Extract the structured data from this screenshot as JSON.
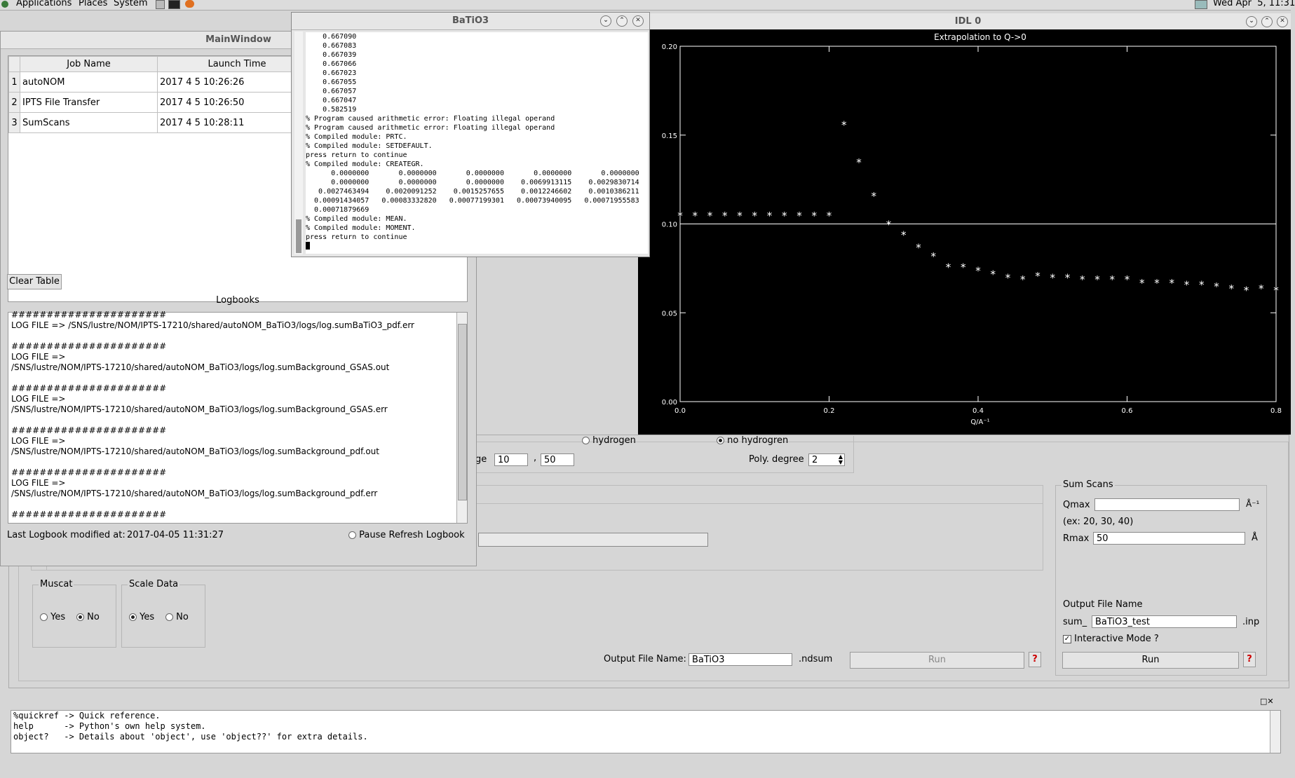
{
  "top_panel": {
    "menus": [
      "Applications",
      "Places",
      "System"
    ],
    "clock": "Wed Apr  5, 11:31"
  },
  "main_window": {
    "title": "MainWindow",
    "job_table": {
      "headers": [
        "Job Name",
        "Launch Time"
      ],
      "rows": [
        {
          "index": "1",
          "name": "autoNOM",
          "time": "2017 4 5 10:26:26"
        },
        {
          "index": "2",
          "name": "IPTS File Transfer",
          "time": "2017 4 5 10:26:50"
        },
        {
          "index": "3",
          "name": "SumScans",
          "time": "2017 4 5 10:28:11"
        }
      ]
    },
    "clear_table_label": "Clear Table",
    "logbooks_title": "Logbooks",
    "log_lines": [
      "######################",
      "LOG FILE => /SNS/lustre/NOM/IPTS-17210/shared/autoNOM_BaTiO3/logs/log.sumBaTiO3_pdf.err",
      "",
      "######################",
      "LOG FILE =>",
      "/SNS/lustre/NOM/IPTS-17210/shared/autoNOM_BaTiO3/logs/log.sumBackground_GSAS.out",
      "",
      "######################",
      "LOG FILE =>",
      "/SNS/lustre/NOM/IPTS-17210/shared/autoNOM_BaTiO3/logs/log.sumBackground_GSAS.err",
      "",
      "######################",
      "LOG FILE =>",
      "/SNS/lustre/NOM/IPTS-17210/shared/autoNOM_BaTiO3/logs/log.sumBackground_pdf.out",
      "",
      "######################",
      "LOG FILE =>",
      "/SNS/lustre/NOM/IPTS-17210/shared/autoNOM_BaTiO3/logs/log.sumBackground_pdf.err",
      "",
      "######################"
    ],
    "last_modified_label": "Last Logbook modified at:",
    "last_modified_value": "2017-04-05 11:31:27",
    "pause_refresh_label": "Pause Refresh Logbook"
  },
  "terminal": {
    "title": "BaTiO3",
    "lines": [
      "    0.667090",
      "    0.667083",
      "    0.667039",
      "    0.667066",
      "    0.667023",
      "    0.667055",
      "    0.667057",
      "    0.667047",
      "    0.582519",
      "% Program caused arithmetic error: Floating illegal operand",
      "% Program caused arithmetic error: Floating illegal operand",
      "% Compiled module: PRTC.",
      "% Compiled module: SETDEFAULT.",
      "press return to continue",
      "% Compiled module: CREATEGR.",
      "      0.0000000       0.0000000       0.0000000       0.0000000       0.0000000",
      "      0.0000000       0.0000000       0.0000000    0.0069913115    0.0029830714",
      "   0.0027463494    0.0020091252    0.0015257655    0.0012246602    0.0010386211",
      "  0.00091434057   0.00083332820   0.00077199301   0.00073940095   0.00071955583",
      "  0.00071879669",
      "% Compiled module: MEAN.",
      "% Compiled module: MOMENT.",
      "press return to continue"
    ]
  },
  "idl_window": {
    "title": "IDL 0"
  },
  "chart_data": {
    "type": "scatter",
    "title": "Extrapolation to Q->0",
    "xlabel": "Q/A⁻¹",
    "ylabel": "",
    "xlim": [
      0.0,
      0.8
    ],
    "ylim": [
      0.0,
      0.2
    ],
    "x_ticks": [
      "0.0",
      "0.2",
      "0.4",
      "0.6",
      "0.8"
    ],
    "y_ticks": [
      "0.00",
      "0.05",
      "0.10",
      "0.15",
      "0.20"
    ],
    "reference_line_y": 0.1,
    "series": [
      {
        "points": [
          [
            0.0,
            0.105
          ],
          [
            0.02,
            0.105
          ],
          [
            0.04,
            0.105
          ],
          [
            0.06,
            0.105
          ],
          [
            0.08,
            0.105
          ],
          [
            0.1,
            0.105
          ],
          [
            0.12,
            0.105
          ],
          [
            0.14,
            0.105
          ],
          [
            0.16,
            0.105
          ],
          [
            0.18,
            0.105
          ],
          [
            0.2,
            0.105
          ],
          [
            0.22,
            0.156
          ],
          [
            0.24,
            0.135
          ],
          [
            0.26,
            0.116
          ],
          [
            0.28,
            0.1
          ],
          [
            0.3,
            0.094
          ],
          [
            0.32,
            0.087
          ],
          [
            0.34,
            0.082
          ],
          [
            0.36,
            0.076
          ],
          [
            0.38,
            0.076
          ],
          [
            0.4,
            0.074
          ],
          [
            0.42,
            0.072
          ],
          [
            0.44,
            0.07
          ],
          [
            0.46,
            0.069
          ],
          [
            0.48,
            0.071
          ],
          [
            0.5,
            0.07
          ],
          [
            0.52,
            0.07
          ],
          [
            0.54,
            0.069
          ],
          [
            0.56,
            0.069
          ],
          [
            0.58,
            0.069
          ],
          [
            0.6,
            0.069
          ],
          [
            0.62,
            0.067
          ],
          [
            0.64,
            0.067
          ],
          [
            0.66,
            0.067
          ],
          [
            0.68,
            0.066
          ],
          [
            0.7,
            0.066
          ],
          [
            0.72,
            0.065
          ],
          [
            0.74,
            0.064
          ],
          [
            0.76,
            0.063
          ],
          [
            0.78,
            0.064
          ],
          [
            0.8,
            0.063
          ]
        ]
      }
    ]
  },
  "background_panel": {
    "hydrogen_label": "hydrogen",
    "no_hydrogen_label": "no hydrogren",
    "range_label_partial": "ge",
    "range_min": "10",
    "range_max": "50",
    "range_sep": ",",
    "poly_degree_label": "Poly. degree",
    "poly_degree_value": "2",
    "muscat_title": "Muscat",
    "muscat_yes": "Yes",
    "muscat_no": "No",
    "scale_title": "Scale Data",
    "scale_yes": "Yes",
    "scale_no": "No",
    "output_label": "Output File Name:",
    "output_value": "BaTiO3",
    "output_ext": ".ndsum",
    "run_label": "Run",
    "help_label": "?"
  },
  "sum_scans": {
    "title": "Sum Scans",
    "qmax_label": "Qmax",
    "qmax_value": "",
    "qmax_unit": "Å⁻¹",
    "qmax_hint": "(ex: 20, 30, 40)",
    "rmax_label": "Rmax",
    "rmax_value": "50",
    "rmax_unit": "Å",
    "output_title": "Output File Name",
    "prefix": "sum_",
    "output_value": "BaTiO3_test",
    "ext": ".inp",
    "interactive_label": "Interactive Mode ?",
    "run_label": "Run",
    "help_label": "?"
  },
  "console": {
    "lines": [
      "%quickref -> Quick reference.",
      "help      -> Python's own help system.",
      "object?   -> Details about 'object', use 'object??' for extra details."
    ]
  }
}
